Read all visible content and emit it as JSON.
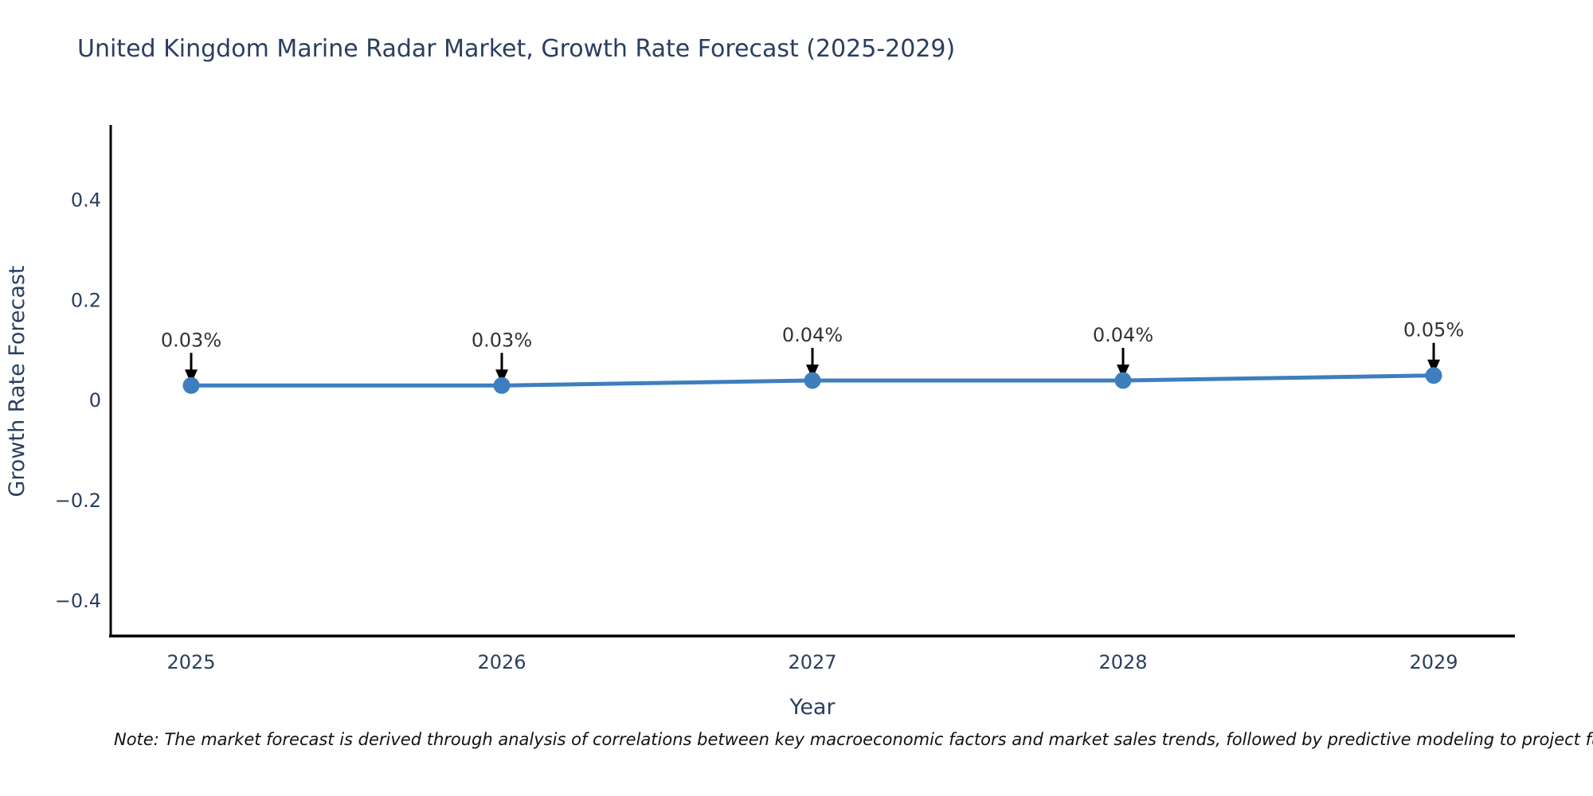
{
  "title": "United Kingdom Marine Radar Market, Growth Rate Forecast (2025-2029)",
  "note": "Note: The market forecast is derived through analysis of correlations between key macroeconomic factors and market sales trends, followed by predictive modeling to project future sa",
  "colors": {
    "title_text": "#2a3f5f",
    "axis_text": "#2a3f5f",
    "annotation_text": "#333333",
    "line": "#3d7ebf",
    "marker": "#3d7ebf",
    "arrow": "#000000",
    "axis_line": "#000000",
    "background": "#ffffff"
  },
  "chart_data": {
    "type": "line",
    "title": "United Kingdom Marine Radar Market, Growth Rate Forecast (2025-2029)",
    "x": [
      "2025",
      "2026",
      "2027",
      "2028",
      "2029"
    ],
    "series": [
      {
        "name": "Growth Rate Forecast",
        "values": [
          0.03,
          0.03,
          0.04,
          0.04,
          0.05
        ]
      }
    ],
    "data_labels": [
      "0.03%",
      "0.03%",
      "0.04%",
      "0.04%",
      "0.05%"
    ],
    "xlabel": "Year",
    "ylabel": "Growth Rate Forecast",
    "yticks": [
      0.4,
      0.2,
      0,
      -0.2,
      -0.4
    ],
    "ytick_labels": [
      "0.4",
      "0.2",
      "0",
      "−0.2",
      "−0.4"
    ],
    "ylim": [
      -0.47,
      0.55
    ],
    "grid": false,
    "legend": "none",
    "markers": true,
    "annotation_arrows": true
  }
}
